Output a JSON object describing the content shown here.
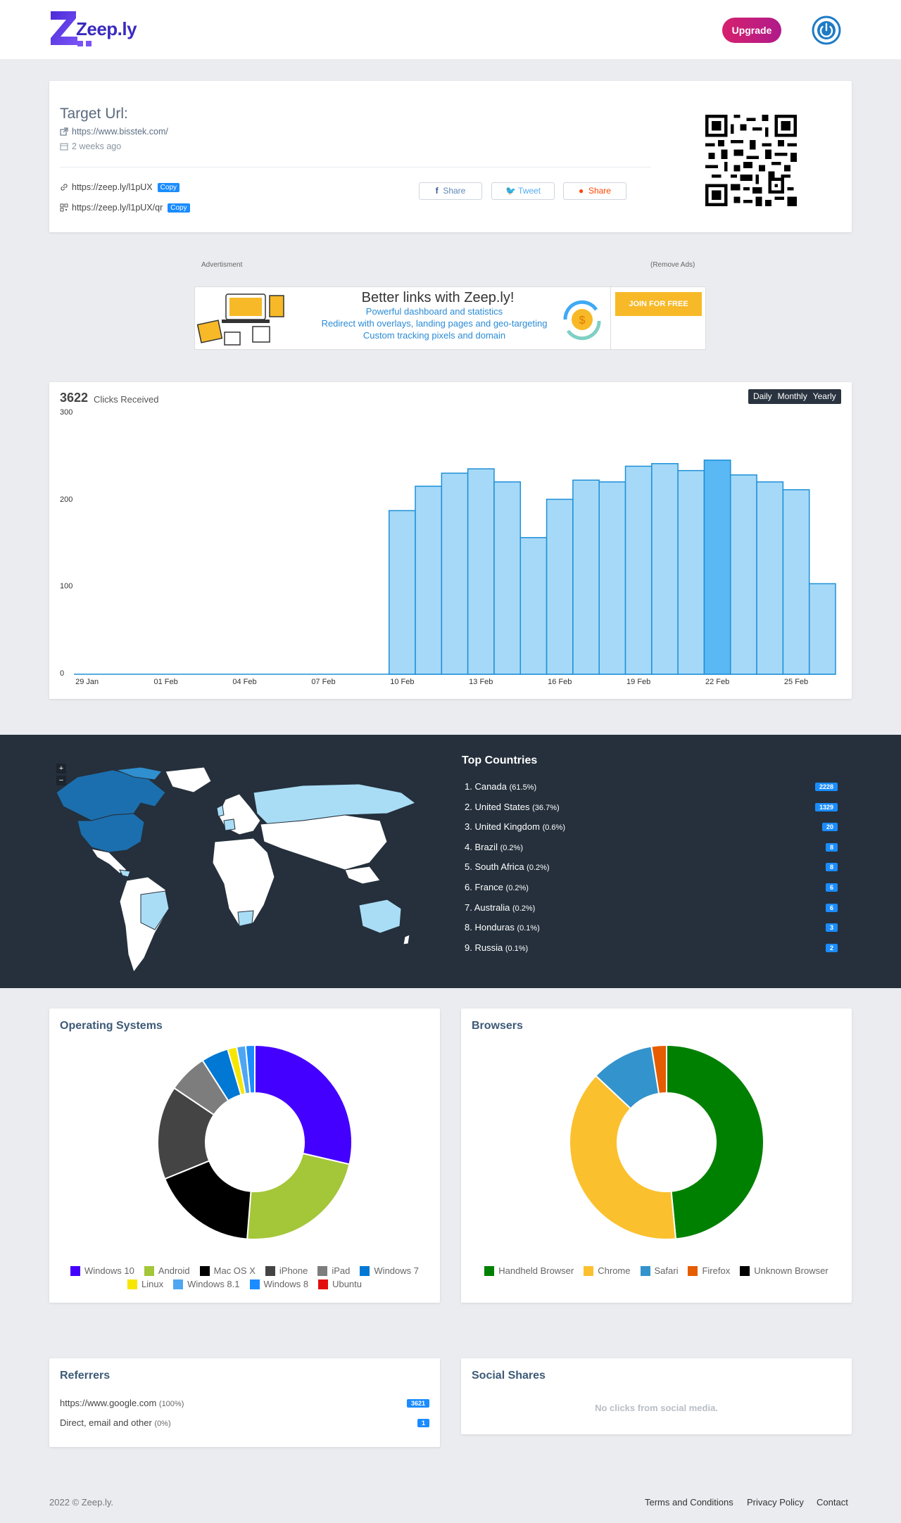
{
  "header": {
    "logo_text": "Zeep.ly",
    "upgrade_label": "Upgrade",
    "power_icon": "power-icon",
    "brand_color": "#3a2bbf",
    "upgrade_color": "#d6216d"
  },
  "target": {
    "title": "Target Url:",
    "url": "https://www.bisstek.com/",
    "created": "2 weeks ago",
    "short_url": "https://zeep.ly/l1pUX",
    "qr_url": "https://zeep.ly/l1pUX/qr",
    "copy_label": "Copy",
    "share_facebook": "Share",
    "share_twitter": "Tweet",
    "share_reddit": "Share"
  },
  "ad": {
    "label": "Advertisment",
    "remove_label": "(Remove Ads)",
    "title": "Better links with Zeep.ly!",
    "line1": "Powerful dashboard and statistics",
    "line2": "Redirect with overlays, landing pages and geo-targeting",
    "line3": "Custom tracking pixels and domain",
    "join_label": "JOIN FOR FREE"
  },
  "clicks": {
    "total": "3622",
    "label": "Clicks Received",
    "periods": [
      "Daily",
      "Monthly",
      "Yearly"
    ]
  },
  "chart_data": {
    "type": "bar",
    "x": [
      "29 Jan",
      "30 Jan",
      "31 Jan",
      "01 Feb",
      "02 Feb",
      "03 Feb",
      "04 Feb",
      "05 Feb",
      "06 Feb",
      "07 Feb",
      "08 Feb",
      "09 Feb",
      "10 Feb",
      "11 Feb",
      "12 Feb",
      "13 Feb",
      "14 Feb",
      "15 Feb",
      "16 Feb",
      "17 Feb",
      "18 Feb",
      "19 Feb",
      "20 Feb",
      "21 Feb",
      "22 Feb",
      "23 Feb",
      "24 Feb",
      "25 Feb",
      "26 Feb"
    ],
    "values": [
      0,
      0,
      0,
      0,
      0,
      0,
      0,
      0,
      0,
      0,
      0,
      0,
      188,
      216,
      231,
      236,
      221,
      157,
      201,
      223,
      221,
      239,
      242,
      234,
      246,
      229,
      221,
      212,
      104
    ],
    "x_tick_labels": [
      "29 Jan",
      "01 Feb",
      "04 Feb",
      "07 Feb",
      "10 Feb",
      "13 Feb",
      "16 Feb",
      "19 Feb",
      "22 Feb",
      "25 Feb"
    ],
    "y_ticks": [
      0,
      100,
      200,
      300
    ],
    "ylim": [
      0,
      300
    ],
    "highlight_index": 24,
    "bar_color": "#a6d9f7",
    "bar_border": "#1e90d8"
  },
  "countries": {
    "title": "Top Countries",
    "items": [
      {
        "name": "1. Canada",
        "pct": "(61.5%)",
        "count": "2228"
      },
      {
        "name": "2. United States",
        "pct": "(36.7%)",
        "count": "1329"
      },
      {
        "name": "3. United Kingdom",
        "pct": "(0.6%)",
        "count": "20"
      },
      {
        "name": "4. Brazil",
        "pct": "(0.2%)",
        "count": "8"
      },
      {
        "name": "5. South Africa",
        "pct": "(0.2%)",
        "count": "8"
      },
      {
        "name": "6. France",
        "pct": "(0.2%)",
        "count": "6"
      },
      {
        "name": "7. Australia",
        "pct": "(0.2%)",
        "count": "6"
      },
      {
        "name": "8. Honduras",
        "pct": "(0.1%)",
        "count": "3"
      },
      {
        "name": "9. Russia",
        "pct": "(0.1%)",
        "count": "2"
      }
    ],
    "zoom_in": "+",
    "zoom_out": "−"
  },
  "os": {
    "title": "Operating Systems",
    "chart": {
      "type": "pie",
      "labels": [
        "Windows 10",
        "Android",
        "Mac OS X",
        "iPhone",
        "iPad",
        "Windows 7",
        "Linux",
        "Windows 8.1",
        "Windows 8",
        "Ubuntu"
      ],
      "values": [
        28.5,
        22.5,
        17.5,
        15.5,
        6.5,
        4.5,
        1.5,
        1.5,
        1.5,
        0.0
      ],
      "colors": [
        "#4400ff",
        "#a4c639",
        "#000000",
        "#444444",
        "#7d7d7d",
        "#0078d4",
        "#f7e600",
        "#4ea6f2",
        "#1a8cff",
        "#e20e0e"
      ]
    }
  },
  "browsers": {
    "title": "Browsers",
    "chart": {
      "type": "pie",
      "labels": [
        "Handheld Browser",
        "Chrome",
        "Safari",
        "Firefox",
        "Unknown Browser"
      ],
      "values": [
        48.5,
        38.5,
        10.5,
        2.5,
        0.0
      ],
      "colors": [
        "#008000",
        "#fbc02d",
        "#3393cc",
        "#e65c00",
        "#000000"
      ]
    }
  },
  "referrers": {
    "title": "Referrers",
    "items": [
      {
        "name": "https://www.google.com",
        "pct": "(100%)",
        "count": "3621"
      },
      {
        "name": "Direct, email and other",
        "pct": "(0%)",
        "count": "1"
      }
    ]
  },
  "social": {
    "title": "Social Shares",
    "empty": "No clicks from social media."
  },
  "footer": {
    "copyright": "2022 © Zeep.ly.",
    "terms": "Terms and Conditions",
    "privacy": "Privacy Policy",
    "contact": "Contact"
  }
}
